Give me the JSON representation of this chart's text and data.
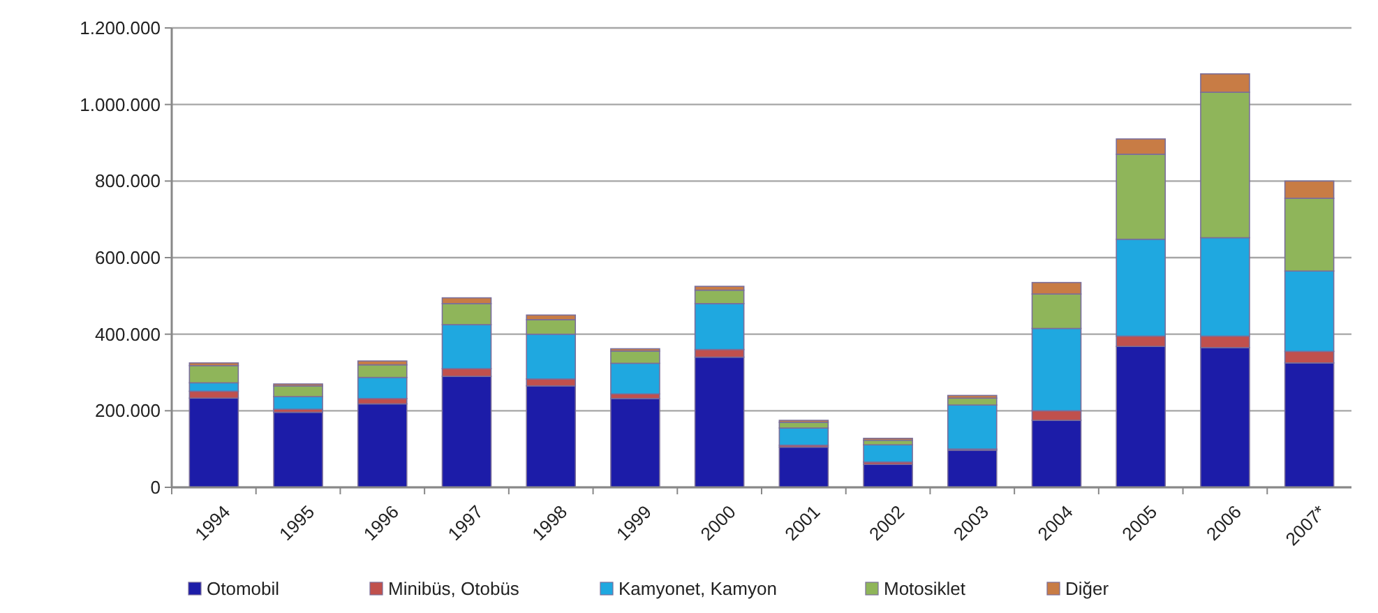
{
  "chart_data": {
    "type": "bar",
    "stacked": true,
    "categories": [
      "1994",
      "1995",
      "1996",
      "1997",
      "1998",
      "1999",
      "2000",
      "2001",
      "2002",
      "2003",
      "2004",
      "2005",
      "2006",
      "2007*"
    ],
    "series": [
      {
        "name": "Otomobil",
        "color": "#1c1ca8",
        "values": [
          233000,
          196000,
          218000,
          290000,
          265000,
          232000,
          340000,
          105000,
          60000,
          97000,
          175000,
          368000,
          365000,
          325000
        ]
      },
      {
        "name": "Minibüs, Otobüs",
        "color": "#c0504d",
        "values": [
          18000,
          8000,
          14000,
          20000,
          18000,
          12000,
          20000,
          5000,
          6000,
          3000,
          25000,
          27000,
          30000,
          30000
        ]
      },
      {
        "name": "Kamyonet, Kamyon",
        "color": "#1fa8e0",
        "values": [
          22000,
          33000,
          55000,
          115000,
          117000,
          80000,
          120000,
          45000,
          45000,
          115000,
          215000,
          253000,
          257000,
          210000
        ]
      },
      {
        "name": "Motosiklet",
        "color": "#8fb55a",
        "values": [
          45000,
          28000,
          33000,
          55000,
          38000,
          32000,
          35000,
          15000,
          12000,
          18000,
          90000,
          222000,
          380000,
          190000
        ]
      },
      {
        "name": "Diğer",
        "color": "#c87c45",
        "values": [
          7000,
          5000,
          10000,
          15000,
          12000,
          6000,
          10000,
          5000,
          5000,
          7000,
          30000,
          40000,
          48000,
          45000
        ]
      }
    ],
    "ylim": [
      0,
      1200000
    ],
    "yticks": [
      {
        "value": 0,
        "label": "0"
      },
      {
        "value": 200000,
        "label": "200.000"
      },
      {
        "value": 400000,
        "label": "400.000"
      },
      {
        "value": 600000,
        "label": "600.000"
      },
      {
        "value": 800000,
        "label": "800.000"
      },
      {
        "value": 1000000,
        "label": "1.000.000"
      },
      {
        "value": 1200000,
        "label": "1.200.000"
      }
    ],
    "grid": "y",
    "legend": "bottom"
  }
}
